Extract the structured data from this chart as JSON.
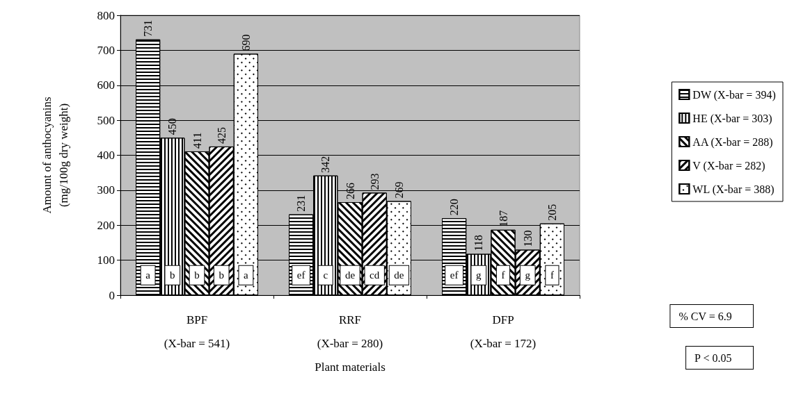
{
  "chart_data": {
    "type": "bar",
    "ylabel": "Amount of anthocyanins\n(mg/100g dry weight)",
    "xlabel": "Plant materials",
    "categories": [
      "BPF\n(X-bar = 541)",
      "RRF\n(X-bar = 280)",
      "DFP\n(X-bar = 172)"
    ],
    "series": [
      {
        "name": "DW (X-bar = 394)",
        "color": "#ffffff",
        "values": [
          731,
          231,
          220
        ]
      },
      {
        "name": "HE (X-bar = 303)",
        "color": "#ffffff",
        "values": [
          450,
          342,
          118
        ]
      },
      {
        "name": "AA (X-bar = 288)",
        "color": "#ffffff",
        "values": [
          411,
          266,
          187
        ]
      },
      {
        "name": "V (X-bar = 282)",
        "color": "#ffffff",
        "values": [
          425,
          293,
          130
        ]
      },
      {
        "name": "WL (X-bar = 388)",
        "color": "#ffffff",
        "values": [
          690,
          269,
          205
        ]
      }
    ],
    "ylim": [
      0,
      800
    ],
    "yticks": [
      0,
      100,
      200,
      300,
      400,
      500,
      600,
      700,
      800
    ],
    "grid": "y",
    "legend": "right",
    "data_labels": true,
    "annotations": [
      "a",
      "b",
      "b",
      "b",
      "a",
      "ef",
      "c",
      "de",
      "cd",
      "de",
      "ef",
      "g",
      "f",
      "g",
      "f",
      "% CV = 6.9",
      "P < 0.05"
    ]
  }
}
